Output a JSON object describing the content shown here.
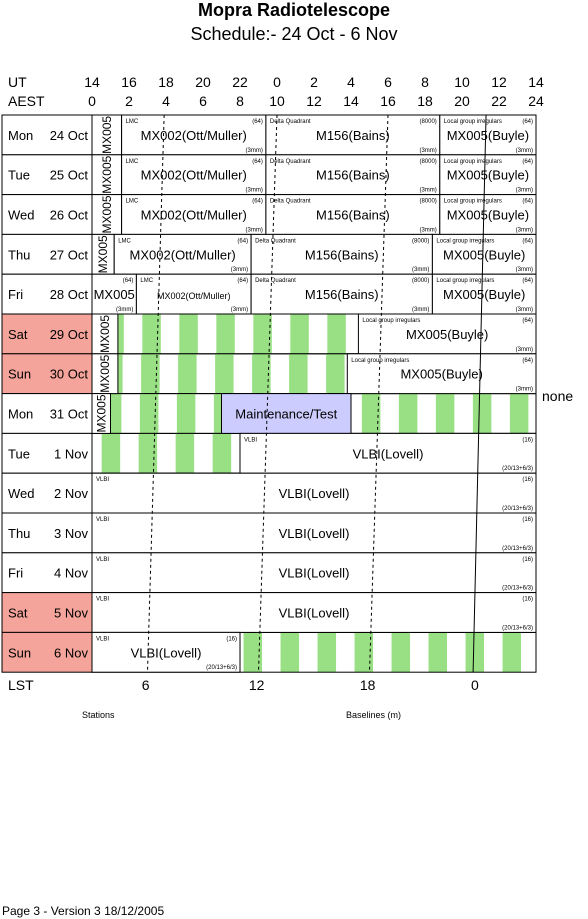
{
  "header": {
    "title": "Mopra Radiotelescope",
    "subtitle": "Schedule:- 24 Oct - 6  Nov"
  },
  "axes": {
    "ut_label": "UT",
    "aest_label": "AEST",
    "ut_hours": [
      "14",
      "16",
      "18",
      "20",
      "22",
      "0",
      "2",
      "4",
      "6",
      "8",
      "10",
      "12",
      "14"
    ],
    "aest_hours": [
      "0",
      "2",
      "4",
      "6",
      "8",
      "10",
      "12",
      "14",
      "16",
      "18",
      "20",
      "22",
      "24"
    ],
    "lst_label": "LST",
    "lst_ticks": [
      "6",
      "12",
      "18",
      "0"
    ]
  },
  "days": [
    {
      "dow": "Mon",
      "date": "24 Oct",
      "weekend": false
    },
    {
      "dow": "Tue",
      "date": "25 Oct",
      "weekend": false
    },
    {
      "dow": "Wed",
      "date": "26 Oct",
      "weekend": false
    },
    {
      "dow": "Thu",
      "date": "27 Oct",
      "weekend": false
    },
    {
      "dow": "Fri",
      "date": "28 Oct",
      "weekend": false
    },
    {
      "dow": "Sat",
      "date": "29 Oct",
      "weekend": true
    },
    {
      "dow": "Sun",
      "date": "30 Oct",
      "weekend": true
    },
    {
      "dow": "Mon",
      "date": "31 Oct",
      "weekend": false
    },
    {
      "dow": "Tue",
      "date": "1  Nov",
      "weekend": false
    },
    {
      "dow": "Wed",
      "date": "2  Nov",
      "weekend": false
    },
    {
      "dow": "Thu",
      "date": "3  Nov",
      "weekend": false
    },
    {
      "dow": "Fri",
      "date": "4  Nov",
      "weekend": false
    },
    {
      "dow": "Sat",
      "date": "5  Nov",
      "weekend": true
    },
    {
      "dow": "Sun",
      "date": "6  Nov",
      "weekend": true
    }
  ],
  "blocks": [
    {
      "row": 0,
      "start": 0,
      "end": 1.6,
      "label": "MX005",
      "vertical": true
    },
    {
      "row": 0,
      "start": 1.6,
      "end": 9.4,
      "label": "MX002(Ott/Muller)",
      "note": "LMC",
      "tr": "(64)",
      "br": "(3mm)"
    },
    {
      "row": 0,
      "start": 9.4,
      "end": 18.8,
      "label": "M156(Bains)",
      "note": "Delta Quadrant",
      "tr": "(8000)",
      "br": "(3mm)"
    },
    {
      "row": 0,
      "start": 18.8,
      "end": 24,
      "label": "MX005(Buyle)",
      "note": "Local group irregulars",
      "tr": "(64)",
      "br": "(3mm)"
    },
    {
      "row": 1,
      "start": 0,
      "end": 1.6,
      "label": "MX005",
      "vertical": true
    },
    {
      "row": 1,
      "start": 1.6,
      "end": 9.4,
      "label": "MX002(Ott/Muller)",
      "note": "LMC",
      "tr": "(64)",
      "br": "(3mm)"
    },
    {
      "row": 1,
      "start": 9.4,
      "end": 18.8,
      "label": "M156(Bains)",
      "note": "Delta Quadrant",
      "tr": "(8000)",
      "br": "(3mm)"
    },
    {
      "row": 1,
      "start": 18.8,
      "end": 24,
      "label": "MX005(Buyle)",
      "note": "Local group irregulars",
      "tr": "(64)",
      "br": "(3mm)"
    },
    {
      "row": 2,
      "start": 0,
      "end": 1.6,
      "label": "MX005",
      "vertical": true
    },
    {
      "row": 2,
      "start": 1.6,
      "end": 9.4,
      "label": "MX002(Ott/Muller)",
      "note": "LMC",
      "tr": "(64)",
      "br": "(3mm)"
    },
    {
      "row": 2,
      "start": 9.4,
      "end": 18.8,
      "label": "M156(Bains)",
      "note": "Delta Quadrant",
      "tr": "(8000)",
      "br": "(3mm)"
    },
    {
      "row": 2,
      "start": 18.8,
      "end": 24,
      "label": "MX005(Buyle)",
      "note": "Local group irregulars",
      "tr": "(64)",
      "br": "(3mm)"
    },
    {
      "row": 3,
      "start": 0,
      "end": 1.2,
      "label": "MX005",
      "vertical": true
    },
    {
      "row": 3,
      "start": 1.2,
      "end": 8.6,
      "label": "MX002(Ott/Muller)",
      "note": "LMC",
      "tr": "(64)",
      "br": "(3mm)"
    },
    {
      "row": 3,
      "start": 8.6,
      "end": 18.4,
      "label": "M156(Bains)",
      "note": "Delta Quadrant",
      "tr": "(8000)",
      "br": "(3mm)"
    },
    {
      "row": 3,
      "start": 18.4,
      "end": 24,
      "label": "MX005(Buyle)",
      "note": "Local group irregulars",
      "tr": "(64)",
      "br": "(3mm)"
    },
    {
      "row": 4,
      "start": 0,
      "end": 2.4,
      "label": "MX005",
      "tr": "(64)",
      "br": "(3mm)"
    },
    {
      "row": 4,
      "start": 2.4,
      "end": 8.6,
      "label": "MX002(Ott/Muller)",
      "note": "LMC",
      "tr": "(64)",
      "br": "(3mm)",
      "smalllabel": true
    },
    {
      "row": 4,
      "start": 8.6,
      "end": 18.4,
      "label": "M156(Bains)",
      "note": "Delta Quadrant",
      "tr": "(8000)",
      "br": "(3mm)"
    },
    {
      "row": 4,
      "start": 18.4,
      "end": 24,
      "label": "MX005(Buyle)",
      "note": "Local group irregulars",
      "tr": "(64)",
      "br": "(3mm)"
    },
    {
      "row": 5,
      "start": 0,
      "end": 1.4,
      "label": "MX005",
      "vertical": true
    },
    {
      "row": 5,
      "start": 14.4,
      "end": 24,
      "label": "MX005(Buyle)",
      "note": "Local group irregulars",
      "tr": "(64)",
      "br": "(3mm)"
    },
    {
      "row": 6,
      "start": 0,
      "end": 1.4,
      "label": "MX005",
      "vertical": true
    },
    {
      "row": 6,
      "start": 13.8,
      "end": 24,
      "label": "MX005(Buyle)",
      "note": "Local group irregulars",
      "tr": "(64)",
      "br": "(3mm)"
    },
    {
      "row": 7,
      "start": 0,
      "end": 1.0,
      "label": "MX005",
      "vertical": true
    },
    {
      "row": 7,
      "start": 7.0,
      "end": 14.0,
      "label": "Maintenance/Test",
      "fill": "#ccccff"
    },
    {
      "row": 8,
      "start": 8.0,
      "end": 24,
      "label": "VLBI(Lovell)",
      "note": "VLBI",
      "tr": "(16)",
      "br": "(20/13+6/3)"
    },
    {
      "row": 9,
      "start": 0,
      "end": 24,
      "label": "VLBI(Lovell)",
      "note": "VLBI",
      "tr": "(16)",
      "br": "(20/13+6/3)"
    },
    {
      "row": 10,
      "start": 0,
      "end": 24,
      "label": "VLBI(Lovell)",
      "note": "VLBI",
      "tr": "(16)",
      "br": "(20/13+6/3)"
    },
    {
      "row": 11,
      "start": 0,
      "end": 24,
      "label": "VLBI(Lovell)",
      "note": "VLBI",
      "tr": "(16)",
      "br": "(20/13+6/3)"
    },
    {
      "row": 12,
      "start": 0,
      "end": 24,
      "label": "VLBI(Lovell)",
      "note": "VLBI",
      "tr": "(16)",
      "br": "(20/13+6/3)"
    },
    {
      "row": 13,
      "start": 0,
      "end": 8.0,
      "label": "VLBI(Lovell)",
      "note": "VLBI",
      "tr": "(16)",
      "br": "(20/13+6/3)"
    }
  ],
  "side_note": "none",
  "footer": {
    "stations": "Stations",
    "baselines": "Baselines (m)",
    "page": "Page 3 - Version 3  18/12/2005"
  },
  "colors": {
    "weekend": "#f4a49a",
    "green": "#99e085",
    "grey": "#cccccc",
    "maintenance": "#ccccff"
  }
}
